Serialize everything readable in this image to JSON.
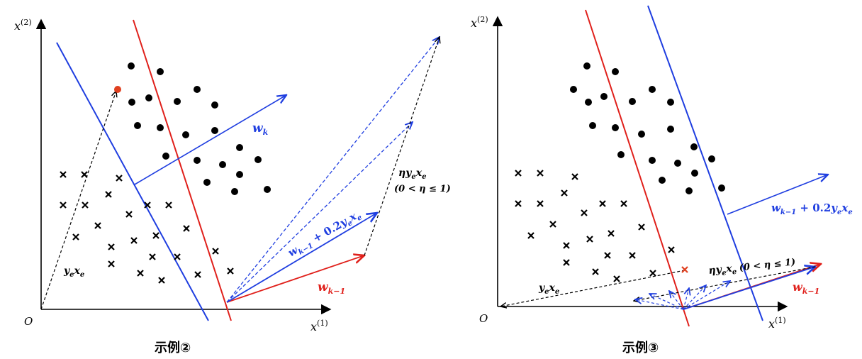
{
  "panel2": {
    "caption": "示例②",
    "x_axis_label": "x",
    "x_axis_sup": "(1)",
    "y_axis_label": "x",
    "y_axis_sup": "(2)",
    "origin_label": "O",
    "wk_label": "w",
    "wk_sub": "k",
    "wk1_label": "w",
    "wk1_sub": "k−1",
    "sum_label": "w",
    "sum_sub": "k−1",
    "sum_rest": " + 0.2",
    "sum_y": "y",
    "sum_y_sub": "e",
    "sum_x": "x",
    "sum_x_sub": "e",
    "eta_label": "η",
    "eta_y": "y",
    "eta_y_sub": "e",
    "eta_x": "x",
    "eta_x_sub": "e",
    "eta_range": "(0 < η ≤ 1)",
    "yexe_y": "y",
    "yexe_y_sub": "e",
    "yexe_x": "x",
    "yexe_x_sub": "e"
  },
  "panel3": {
    "caption": "示例③",
    "x_axis_label": "x",
    "x_axis_sup": "(1)",
    "y_axis_label": "x",
    "y_axis_sup": "(2)",
    "origin_label": "O",
    "wk1_label": "w",
    "wk1_sub": "k−1",
    "sum_label": "w",
    "sum_sub": "k−1",
    "sum_rest": " + 0.2",
    "sum_y": "y",
    "sum_y_sub": "e",
    "sum_x": "x",
    "sum_x_sub": "e",
    "eta_label": "η",
    "eta_y": "y",
    "eta_y_sub": "e",
    "eta_x": "x",
    "eta_x_sub": "e",
    "eta_range": "(0 < η ≤ 1)",
    "yexe_y": "y",
    "yexe_y_sub": "e",
    "yexe_x": "x",
    "yexe_x_sub": "e"
  },
  "colors": {
    "red": "#e0201b",
    "blue": "#1f3ee0",
    "black": "#000000",
    "highlight_point": "#e04020"
  }
}
